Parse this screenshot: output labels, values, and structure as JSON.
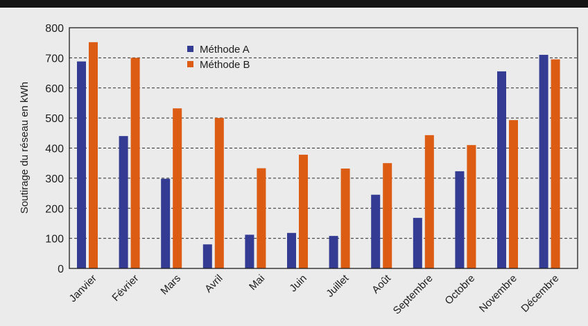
{
  "chart_data": {
    "type": "bar",
    "title": "",
    "xlabel": "",
    "ylabel": "Soutirage du réseau en kWh",
    "ylim": [
      0,
      800
    ],
    "yticks": [
      0,
      100,
      200,
      300,
      400,
      500,
      600,
      700,
      800
    ],
    "grid": "horizontal dashed",
    "legend_position": "top-left",
    "categories": [
      "Janvier",
      "Février",
      "Mars",
      "Avril",
      "Mai",
      "Juin",
      "Juillet",
      "Août",
      "Septembre",
      "Octobre",
      "Novembre",
      "Décembre"
    ],
    "series": [
      {
        "name": "Méthode A",
        "color": "#343b93",
        "values": [
          688,
          440,
          298,
          80,
          112,
          118,
          108,
          245,
          168,
          323,
          655,
          710
        ]
      },
      {
        "name": "Méthode B",
        "color": "#dd5c14",
        "values": [
          752,
          700,
          532,
          500,
          333,
          378,
          332,
          350,
          443,
          410,
          493,
          695
        ]
      }
    ]
  }
}
